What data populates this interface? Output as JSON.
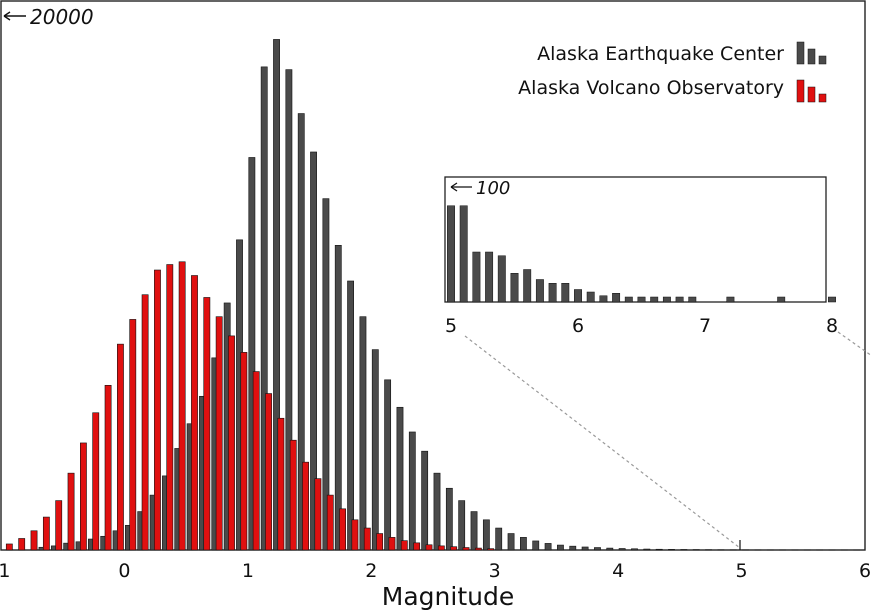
{
  "chart_data": [
    {
      "type": "bar",
      "xlabel": "Magnitude",
      "ylabel": "",
      "x_ticks": [
        "-1",
        "0",
        "1",
        "2",
        "3",
        "4",
        "5",
        "6"
      ],
      "xlim": [
        -1,
        6
      ],
      "ylim": [
        0,
        20000
      ],
      "y_marker_label": "20000",
      "grid": false,
      "legend_position": "top-right",
      "series": [
        {
          "name": "Alaska Earthquake Center",
          "color": "#4a4a4a",
          "x": [
            -0.7,
            -0.6,
            -0.5,
            -0.4,
            -0.3,
            -0.2,
            -0.1,
            0.0,
            0.1,
            0.2,
            0.3,
            0.4,
            0.5,
            0.6,
            0.7,
            0.8,
            0.9,
            1.0,
            1.1,
            1.2,
            1.3,
            1.4,
            1.5,
            1.6,
            1.7,
            1.8,
            1.9,
            2.0,
            2.1,
            2.2,
            2.3,
            2.4,
            2.5,
            2.6,
            2.7,
            2.8,
            2.9,
            3.0,
            3.1,
            3.2,
            3.3,
            3.4,
            3.5,
            3.6,
            3.7,
            3.8,
            3.9,
            4.0,
            4.1,
            4.2,
            4.3,
            4.4,
            4.5,
            4.6,
            4.7,
            4.8,
            4.9,
            5.0,
            5.1,
            5.2,
            5.3,
            5.4,
            5.5,
            5.6,
            5.7,
            5.8,
            5.9
          ],
          "values": [
            100,
            150,
            250,
            300,
            400,
            500,
            700,
            900,
            1400,
            2000,
            2700,
            3700,
            4600,
            5600,
            7000,
            9000,
            11300,
            14300,
            17600,
            18600,
            17500,
            15900,
            14500,
            12800,
            11100,
            9800,
            8500,
            7300,
            6200,
            5200,
            4300,
            3600,
            2800,
            2250,
            1800,
            1400,
            1100,
            800,
            600,
            460,
            330,
            240,
            180,
            140,
            110,
            90,
            70,
            55,
            45,
            35,
            28,
            22,
            18,
            15,
            12,
            10,
            9,
            8,
            7,
            6,
            6,
            5,
            5,
            4,
            4,
            4,
            3
          ]
        },
        {
          "name": "Alaska Volcano Observatory",
          "color": "#e01010",
          "x": [
            -0.9,
            -0.8,
            -0.7,
            -0.6,
            -0.5,
            -0.4,
            -0.3,
            -0.2,
            -0.1,
            0.0,
            0.1,
            0.2,
            0.3,
            0.4,
            0.5,
            0.6,
            0.7,
            0.8,
            0.9,
            1.0,
            1.1,
            1.2,
            1.3,
            1.4,
            1.5,
            1.6,
            1.7,
            1.8,
            1.9,
            2.0,
            2.1,
            2.2,
            2.3,
            2.4,
            2.5,
            2.6,
            2.7,
            2.8,
            2.9,
            3.0
          ],
          "values": [
            220,
            420,
            700,
            1200,
            1800,
            2800,
            3900,
            5000,
            6000,
            7500,
            8400,
            9300,
            10200,
            10400,
            10500,
            10000,
            9200,
            8500,
            7800,
            7200,
            6500,
            5700,
            4800,
            4000,
            3200,
            2600,
            2000,
            1500,
            1100,
            800,
            600,
            460,
            340,
            260,
            190,
            150,
            120,
            90,
            70,
            50
          ]
        }
      ]
    },
    {
      "type": "bar",
      "xlabel": "",
      "ylabel": "",
      "x_ticks": [
        "5",
        "6",
        "7",
        "8"
      ],
      "xlim": [
        5,
        8
      ],
      "ylim": [
        0,
        100
      ],
      "y_marker_label": "100",
      "grid": false,
      "legend_position": "none",
      "series": [
        {
          "name": "",
          "color": "#4a4a4a",
          "x": [
            5.0,
            5.1,
            5.2,
            5.3,
            5.4,
            5.5,
            5.6,
            5.7,
            5.8,
            5.9,
            6.0,
            6.1,
            6.2,
            6.3,
            6.4,
            6.5,
            6.6,
            6.7,
            6.8,
            6.9,
            7.2,
            7.6,
            8.0
          ],
          "values": [
            77,
            77,
            40,
            40,
            37,
            23,
            26,
            18,
            15,
            15,
            10,
            8,
            5,
            7,
            4,
            4,
            4,
            4,
            4,
            4,
            4,
            4,
            4
          ]
        }
      ]
    }
  ],
  "legend": {
    "items": [
      {
        "label": "Alaska Earthquake Center",
        "color": "#4a4a4a"
      },
      {
        "label": "Alaska Volcano Observatory",
        "color": "#e01010"
      }
    ]
  }
}
